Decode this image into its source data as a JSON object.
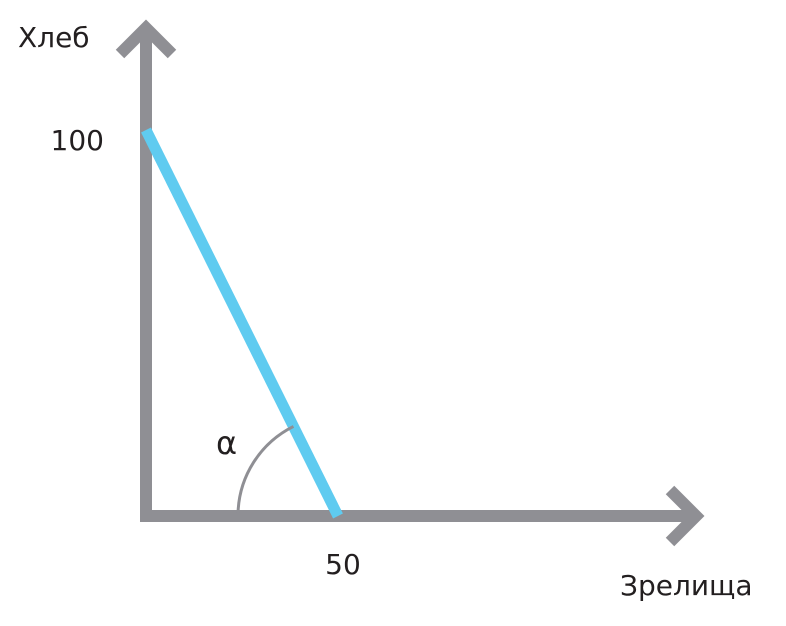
{
  "chart_data": {
    "type": "line",
    "title": "",
    "xlabel": "Зрелища",
    "ylabel": "Хлеб",
    "xlim": [
      0,
      100
    ],
    "ylim": [
      0,
      135
    ],
    "ticks": {
      "x": [
        {
          "value": 50,
          "label": "50"
        }
      ],
      "y": [
        {
          "value": 100,
          "label": "100"
        }
      ]
    },
    "series": [
      {
        "x": [
          0,
          50
        ],
        "y": [
          100,
          0
        ]
      }
    ],
    "annotations": [
      {
        "text": "α",
        "kind": "angle"
      }
    ],
    "grid": false,
    "legend": "none",
    "colors": {
      "axis": "#8f8f94",
      "line": "#5fcbf0",
      "arc": "#8f8f94",
      "text": "#231f20"
    }
  }
}
